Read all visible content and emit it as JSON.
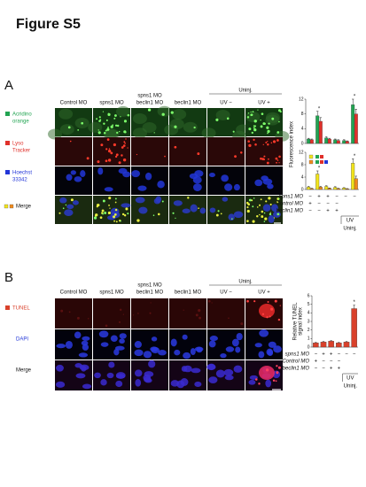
{
  "title": "Figure S5",
  "panel_a": {
    "label": "A",
    "uninj": "Uninj.",
    "columns": [
      [
        "Control MO"
      ],
      [
        "spns1 MO"
      ],
      [
        "spns1 MO",
        "beclin1 MO"
      ],
      [
        "beclin1 MO"
      ],
      [
        "UV −"
      ],
      [
        "UV +"
      ]
    ],
    "rows": [
      {
        "lines": [
          "Acridino",
          "orange"
        ]
      },
      {
        "lines": [
          "Lyso",
          "Tracker"
        ]
      },
      {
        "lines": [
          "Hoechst",
          "33342"
        ]
      },
      {
        "lines": [
          "Merge"
        ]
      }
    ],
    "y_label": "Fluorescence index",
    "charts": [
      {
        "type": "bar",
        "ylim": [
          0,
          12
        ],
        "yticks": [
          0,
          4,
          8,
          12
        ],
        "stars": {
          "text": "*",
          "at": [
            1,
            5
          ]
        },
        "series": [
          {
            "color": "#22a452",
            "values": [
              1.2,
              7.5,
              1.5,
              1.0,
              0.8,
              10.5
            ],
            "errors": [
              0.2,
              1.2,
              0.3,
              0.2,
              0.2,
              1.5
            ]
          },
          {
            "color": "#e0302a",
            "values": [
              1.0,
              6.0,
              1.2,
              0.8,
              0.6,
              8.0
            ],
            "errors": [
              0.2,
              1.0,
              0.2,
              0.2,
              0.1,
              1.3
            ]
          }
        ]
      },
      {
        "type": "bar",
        "ylim": [
          0,
          12
        ],
        "yticks": [
          0,
          4,
          8,
          12
        ],
        "stars": {
          "text": "*",
          "at": [
            1,
            5
          ]
        },
        "series": [
          {
            "color": "#f2e41c",
            "values": [
              0.8,
              5.0,
              1.0,
              0.7,
              0.5,
              8.5
            ],
            "errors": [
              0.2,
              1.0,
              0.2,
              0.2,
              0.1,
              1.4
            ]
          },
          {
            "color": "#f08a1c",
            "values": [
              0.3,
              0.8,
              0.4,
              0.3,
              0.2,
              3.5
            ],
            "errors": [
              0.1,
              0.2,
              0.1,
              0.1,
              0.1,
              0.8
            ]
          }
        ]
      }
    ],
    "signs": {
      "rows": [
        {
          "label": "spns1 MO",
          "values": [
            "−",
            "+",
            "+",
            "−",
            "−",
            "−"
          ]
        },
        {
          "label": "Control MO",
          "values": [
            "+",
            "−",
            "−",
            "−"
          ]
        },
        {
          "label": "beclin1 MO",
          "values": [
            "−",
            "−",
            "+",
            "+"
          ]
        }
      ],
      "uv": {
        "label": "UV",
        "values": [
          "−",
          "+"
        ]
      },
      "group": "Uninj."
    }
  },
  "panel_b": {
    "label": "B",
    "uninj": "Uninj.",
    "columns": [
      [
        "Control MO"
      ],
      [
        "spns1 MO"
      ],
      [
        "spns1 MO",
        "beclin1 MO"
      ],
      [
        "beclin1 MO"
      ],
      [
        "UV −"
      ],
      [
        "UV +"
      ]
    ],
    "rows": [
      {
        "lines": [
          "TUNEL"
        ]
      },
      {
        "lines": [
          "DAPI"
        ]
      },
      {
        "lines": [
          "Merge"
        ]
      }
    ],
    "y_label": [
      "Relative TUNEL",
      "signal index"
    ],
    "chart": {
      "type": "bar",
      "ylim": [
        0,
        6
      ],
      "yticks": [
        0,
        1,
        2,
        3,
        4,
        5,
        6
      ],
      "stars": {
        "text": "*",
        "at": [
          5
        ]
      },
      "series": [
        {
          "color": "#d9412b",
          "values": [
            0.5,
            0.6,
            0.7,
            0.5,
            0.6,
            4.5
          ],
          "errors": [
            0.05,
            0.06,
            0.06,
            0.05,
            0.06,
            0.4
          ]
        }
      ]
    },
    "signs": {
      "rows": [
        {
          "label": "spns1 MO",
          "values": [
            "−",
            "+",
            "+",
            "−",
            "−",
            "−"
          ]
        },
        {
          "label": "Control MO",
          "values": [
            "+",
            "−",
            "−",
            "−"
          ]
        },
        {
          "label": "beclin1 MO",
          "values": [
            "−",
            "−",
            "+",
            "+"
          ]
        }
      ],
      "uv": {
        "label": "UV",
        "values": [
          "−",
          "+"
        ]
      },
      "group": "Uninj."
    }
  }
}
